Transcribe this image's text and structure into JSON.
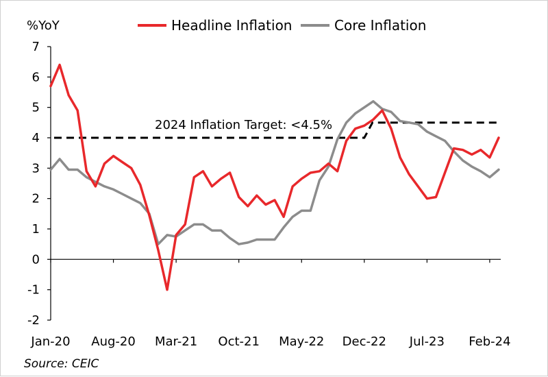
{
  "chart_data": {
    "type": "line",
    "ylabel": "%YoY",
    "ylim": [
      -2,
      7
    ],
    "yticks": [
      -2,
      -1,
      0,
      1,
      2,
      3,
      4,
      5,
      6,
      7
    ],
    "xtick_labels": [
      "Jan-20",
      "Aug-20",
      "Mar-21",
      "Oct-21",
      "May-22",
      "Dec-22",
      "Jul-23",
      "Feb-24"
    ],
    "x_start": "2020-01",
    "x_end": "2024-03",
    "legend_position": "top",
    "series": [
      {
        "name": "Headline Inflation",
        "color": "#e8282b",
        "values": [
          5.7,
          6.4,
          5.4,
          4.9,
          2.9,
          2.4,
          3.15,
          3.4,
          3.2,
          3.0,
          2.45,
          1.45,
          0.3,
          -1.0,
          0.8,
          1.15,
          2.7,
          2.9,
          2.4,
          2.65,
          2.85,
          2.05,
          1.75,
          2.1,
          1.8,
          1.95,
          1.4,
          2.4,
          2.65,
          2.85,
          2.9,
          3.15,
          2.9,
          3.9,
          4.3,
          4.4,
          4.6,
          4.9,
          4.3,
          3.35,
          2.8,
          2.4,
          2.0,
          2.05,
          2.85,
          3.65,
          3.6,
          3.45,
          3.6,
          3.35,
          4.0
        ]
      },
      {
        "name": "Core Inflation",
        "color": "#8c8c8c",
        "values": [
          2.95,
          3.3,
          2.95,
          2.95,
          2.7,
          2.55,
          2.4,
          2.3,
          2.15,
          2.0,
          1.85,
          1.5,
          0.5,
          0.8,
          0.75,
          0.95,
          1.15,
          1.15,
          0.95,
          0.95,
          0.7,
          0.5,
          0.55,
          0.65,
          0.65,
          0.65,
          1.05,
          1.4,
          1.6,
          1.6,
          2.6,
          3.05,
          3.95,
          4.5,
          4.8,
          5.0,
          5.2,
          4.95,
          4.85,
          4.55,
          4.5,
          4.45,
          4.2,
          4.05,
          3.9,
          3.55,
          3.25,
          3.05,
          2.9,
          2.7,
          2.95
        ]
      }
    ],
    "target_line": {
      "label": "2024 Inflation Target: <4.5%",
      "segments": [
        {
          "from": "2020-01",
          "to": "2022-12",
          "value": 4.0
        },
        {
          "from": "2023-01",
          "to": "2024-03",
          "value": 4.5
        }
      ],
      "color": "#000000"
    },
    "source": "Source: CEIC"
  }
}
